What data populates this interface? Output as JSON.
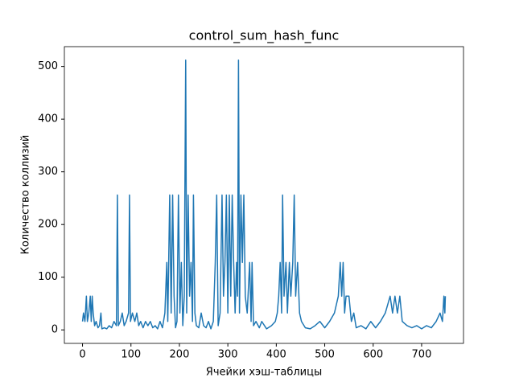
{
  "chart_data": {
    "type": "line",
    "title": "control_sum_hash_func",
    "x_label": "Ячейки хэш-таблицы",
    "y_label": "Количество коллизий",
    "xlim": [
      -37.45,
      786.45
    ],
    "ylim": [
      -25.6,
      537.6
    ],
    "xticks": [
      0,
      100,
      200,
      300,
      400,
      500,
      600,
      700
    ],
    "yticks": [
      0,
      100,
      200,
      300,
      400,
      500
    ],
    "color": "#1f77b4",
    "x": [
      0,
      2,
      5,
      8,
      10,
      13,
      16,
      18,
      20,
      22,
      25,
      28,
      32,
      35,
      38,
      40,
      45,
      50,
      55,
      60,
      65,
      70,
      72,
      74,
      78,
      82,
      86,
      90,
      95,
      97,
      99,
      103,
      108,
      112,
      116,
      120,
      125,
      130,
      135,
      140,
      145,
      150,
      155,
      160,
      165,
      170,
      174,
      176,
      180,
      183,
      186,
      189,
      192,
      195,
      198,
      201,
      204,
      207,
      210,
      213,
      215,
      218,
      221,
      224,
      227,
      229,
      232,
      235,
      240,
      245,
      250,
      255,
      260,
      265,
      270,
      274,
      277,
      280,
      284,
      288,
      291,
      294,
      297,
      300,
      303,
      306,
      309,
      312,
      315,
      318,
      320,
      322,
      324,
      327,
      330,
      333,
      336,
      340,
      345,
      348,
      350,
      353,
      358,
      365,
      370,
      380,
      390,
      398,
      402,
      405,
      408,
      411,
      413,
      416,
      420,
      423,
      427,
      430,
      434,
      437,
      440,
      444,
      448,
      452,
      460,
      470,
      480,
      490,
      500,
      510,
      520,
      528,
      532,
      535,
      538,
      541,
      544,
      550,
      555,
      560,
      565,
      575,
      585,
      595,
      605,
      615,
      625,
      635,
      640,
      645,
      650,
      655,
      660,
      670,
      680,
      690,
      700,
      710,
      720,
      730,
      738,
      743,
      746,
      748,
      749
    ],
    "values": [
      16,
      32,
      16,
      64,
      16,
      32,
      64,
      16,
      64,
      32,
      8,
      16,
      4,
      8,
      32,
      2,
      4,
      2,
      8,
      4,
      16,
      8,
      256,
      8,
      16,
      32,
      8,
      16,
      32,
      256,
      16,
      32,
      16,
      32,
      8,
      16,
      4,
      16,
      8,
      16,
      4,
      8,
      2,
      16,
      4,
      32,
      128,
      16,
      256,
      32,
      256,
      64,
      4,
      16,
      256,
      32,
      128,
      8,
      64,
      512,
      32,
      256,
      64,
      128,
      16,
      256,
      32,
      8,
      4,
      32,
      8,
      4,
      16,
      2,
      16,
      128,
      256,
      8,
      32,
      256,
      64,
      128,
      256,
      32,
      256,
      64,
      256,
      128,
      32,
      128,
      64,
      512,
      32,
      256,
      128,
      256,
      64,
      32,
      128,
      16,
      128,
      8,
      16,
      4,
      16,
      2,
      8,
      16,
      32,
      64,
      128,
      32,
      256,
      64,
      128,
      32,
      128,
      64,
      128,
      256,
      64,
      128,
      32,
      16,
      4,
      2,
      8,
      16,
      4,
      16,
      32,
      64,
      128,
      64,
      128,
      32,
      64,
      64,
      16,
      32,
      4,
      8,
      2,
      16,
      4,
      16,
      32,
      64,
      32,
      64,
      32,
      64,
      16,
      8,
      4,
      8,
      2,
      8,
      4,
      16,
      32,
      16,
      64,
      32,
      64
    ]
  }
}
